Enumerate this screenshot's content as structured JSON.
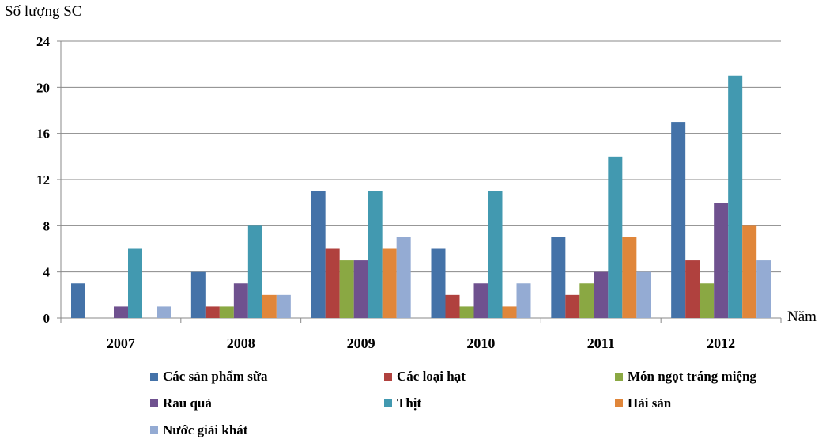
{
  "chart_data": {
    "type": "bar",
    "ylabel": "Số lượng SC",
    "xlabel": "Năm",
    "categories": [
      "2007",
      "2008",
      "2009",
      "2010",
      "2011",
      "2012"
    ],
    "ylim": [
      0,
      24
    ],
    "yticks": [
      "0",
      "4",
      "8",
      "12",
      "16",
      "20",
      "24"
    ],
    "grid": true,
    "legend_position": "bottom",
    "series": [
      {
        "name": "Các sản phẩm sữa",
        "color": "#4472A8",
        "values": [
          3,
          4,
          11,
          6,
          7,
          17
        ]
      },
      {
        "name": "Các loại hạt",
        "color": "#B0413E",
        "values": [
          0,
          1,
          6,
          2,
          2,
          5
        ]
      },
      {
        "name": "Món ngọt tráng miệng",
        "color": "#8AA843",
        "values": [
          0,
          1,
          5,
          1,
          3,
          3
        ]
      },
      {
        "name": "Rau quả",
        "color": "#6F518F",
        "values": [
          1,
          3,
          5,
          3,
          4,
          10
        ]
      },
      {
        "name": "Thịt",
        "color": "#4299B0",
        "values": [
          6,
          8,
          11,
          11,
          14,
          21
        ]
      },
      {
        "name": "Hải sản",
        "color": "#E0863A",
        "values": [
          0,
          2,
          6,
          1,
          7,
          8
        ]
      },
      {
        "name": "Nước giải khát",
        "color": "#94ABD3",
        "values": [
          1,
          2,
          7,
          3,
          4,
          5
        ]
      }
    ]
  }
}
